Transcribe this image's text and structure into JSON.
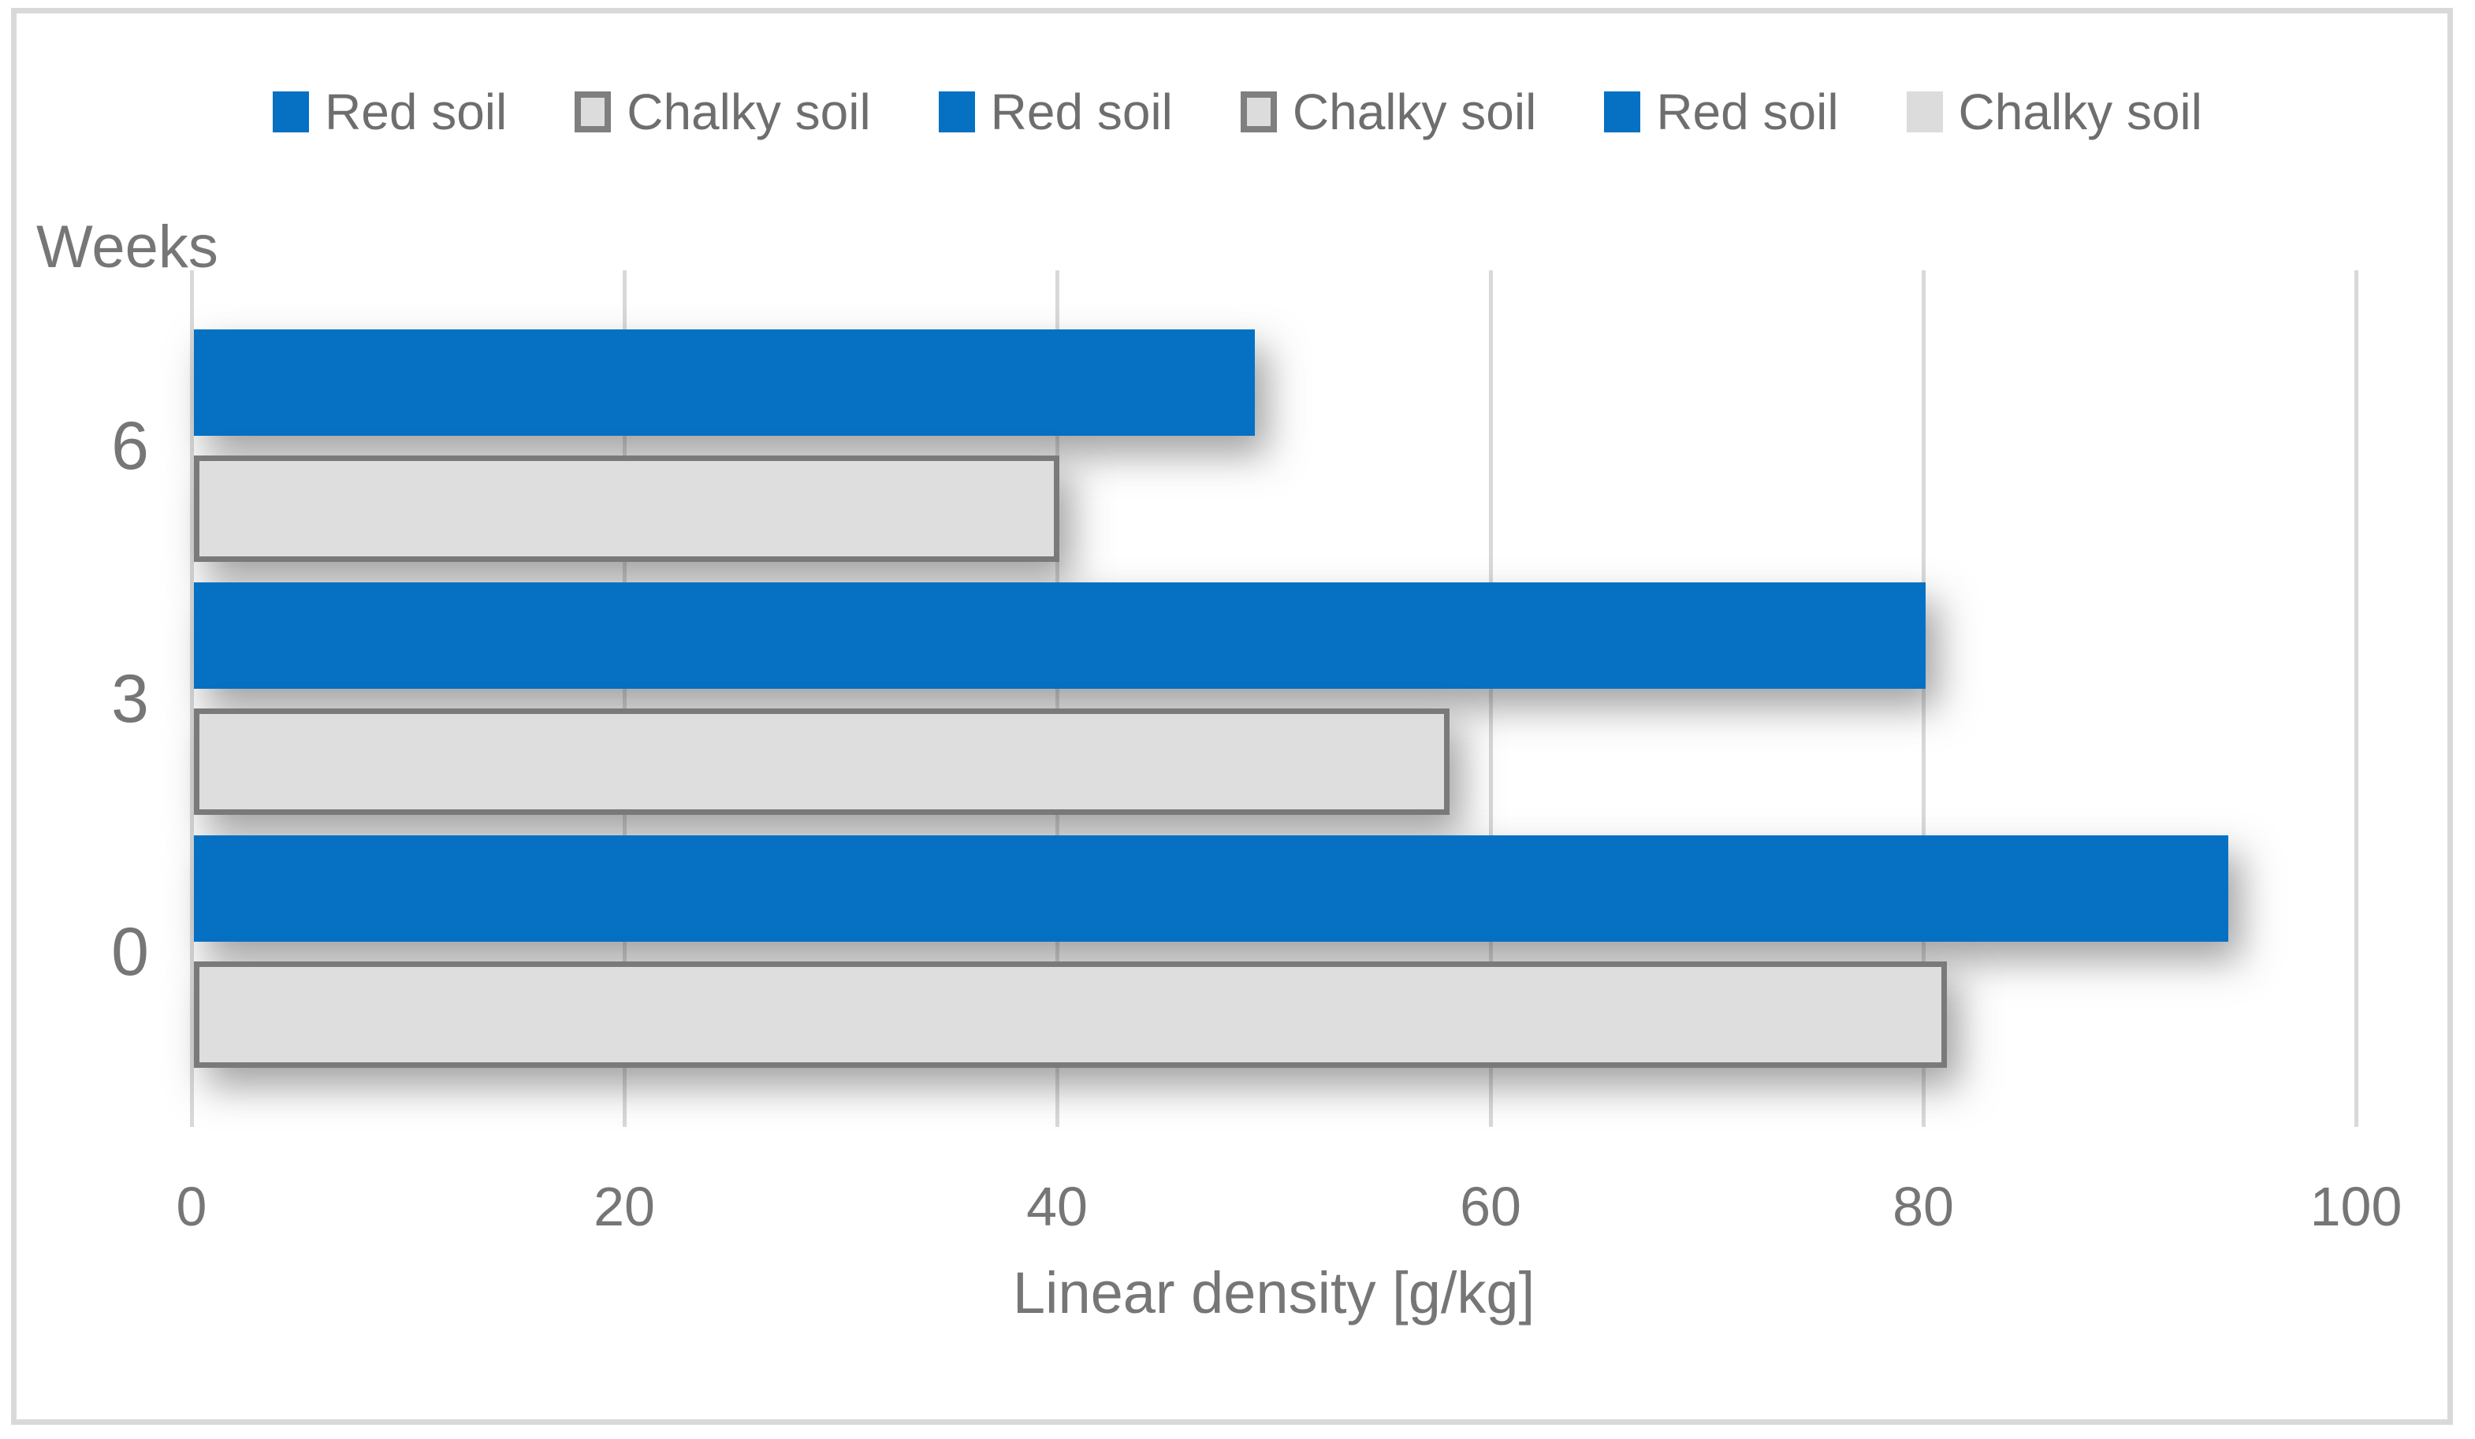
{
  "frame": {
    "border_color": "#d9d9d9",
    "background": "#ffffff"
  },
  "legend": {
    "items": [
      {
        "label": "Red soil",
        "swatch": "blue"
      },
      {
        "label": "Chalky soil",
        "swatch": "gray-bordered"
      },
      {
        "label": "Red soil",
        "swatch": "blue"
      },
      {
        "label": "Chalky soil",
        "swatch": "gray-bordered"
      },
      {
        "label": "Red soil",
        "swatch": "blue"
      },
      {
        "label": "Chalky soil",
        "swatch": "gray-plain"
      }
    ]
  },
  "axes": {
    "y_title": "Weeks",
    "x_title": "Linear density [g/kg]",
    "category_labels": [
      "6",
      "3",
      "0"
    ],
    "x_tick_labels": [
      "0",
      "20",
      "40",
      "60",
      "80",
      "100"
    ]
  },
  "chart_data": {
    "type": "bar",
    "orientation": "horizontal",
    "title": "",
    "xlabel": "Linear density [g/kg]",
    "ylabel": "Weeks",
    "categories": [
      "6",
      "3",
      "0"
    ],
    "series": [
      {
        "name": "Red soil",
        "color": "#0671c3",
        "values": [
          49,
          80,
          94
        ]
      },
      {
        "name": "Chalky soil",
        "color": "#dedede",
        "border_color": "#7a7a7a",
        "values": [
          40,
          58,
          81
        ]
      }
    ],
    "xlim": [
      0,
      100
    ],
    "x_ticks": [
      0,
      20,
      40,
      60,
      80,
      100
    ],
    "grid": true,
    "gridline_color": "#d9d9d9",
    "legend_position": "top"
  }
}
